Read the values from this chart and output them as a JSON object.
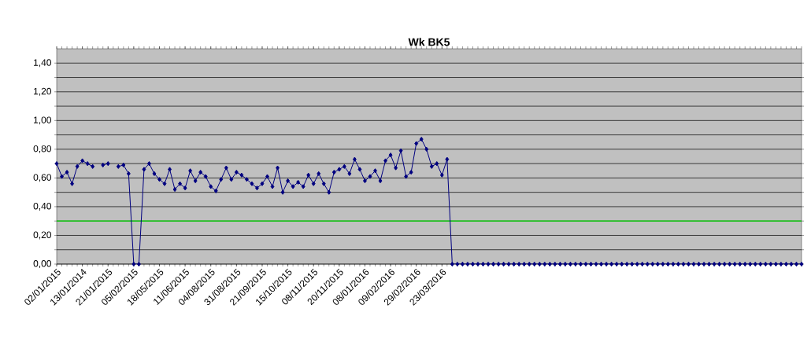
{
  "chart_data": {
    "type": "line",
    "title": "Wk BK5",
    "categories": [
      "02/01/2015",
      null,
      null,
      null,
      null,
      "13/01/2014",
      null,
      null,
      null,
      null,
      "21/01/2015",
      null,
      null,
      null,
      null,
      "05/02/2015",
      null,
      null,
      null,
      null,
      "18/05/2015",
      null,
      null,
      null,
      null,
      "11/06/2015",
      null,
      null,
      null,
      null,
      "04/08/2015",
      null,
      null,
      null,
      null,
      "31/08/2015",
      null,
      null,
      null,
      null,
      "21/09/2015",
      null,
      null,
      null,
      null,
      "15/10/2015",
      null,
      null,
      null,
      null,
      "08/11/2015",
      null,
      null,
      null,
      null,
      "20/11/2015",
      null,
      null,
      null,
      null,
      "08/01/2016",
      null,
      null,
      null,
      null,
      "09/02/2016",
      null,
      null,
      null,
      null,
      "29/02/2016",
      null,
      null,
      null,
      null,
      "23/03/2016",
      null,
      null,
      null,
      null,
      null,
      null,
      null,
      null,
      null,
      null,
      null,
      null,
      null,
      null,
      null,
      null,
      null,
      null,
      null,
      null,
      null,
      null,
      null,
      null,
      null,
      null,
      null,
      null,
      null,
      null,
      null,
      null,
      null,
      null,
      null,
      null,
      null,
      null,
      null,
      null,
      null,
      null,
      null,
      null,
      null,
      null,
      null,
      null,
      null,
      null,
      null,
      null,
      null,
      null,
      null,
      null,
      null,
      null,
      null,
      null,
      null,
      null,
      null,
      null,
      null,
      null,
      null,
      null,
      null,
      null
    ],
    "series": [
      {
        "color": "#000080",
        "values": [
          0.7,
          0.61,
          0.64,
          0.56,
          0.68,
          0.72,
          0.7,
          0.68,
          null,
          0.69,
          0.7,
          null,
          0.68,
          0.69,
          0.63,
          0,
          0,
          0.66,
          0.7,
          0.63,
          0.59,
          0.56,
          0.66,
          0.52,
          0.56,
          0.53,
          0.65,
          0.58,
          0.64,
          0.61,
          0.54,
          0.51,
          0.59,
          0.67,
          0.59,
          0.64,
          0.62,
          0.59,
          0.56,
          0.53,
          0.56,
          0.61,
          0.54,
          0.67,
          0.5,
          0.58,
          0.54,
          0.57,
          0.54,
          0.62,
          0.56,
          0.63,
          0.56,
          0.5,
          0.64,
          0.66,
          0.68,
          0.63,
          0.73,
          0.66,
          0.58,
          0.61,
          0.65,
          0.58,
          0.72,
          0.76,
          0.67,
          0.79,
          0.61,
          0.64,
          0.84,
          0.87,
          0.8,
          0.68,
          0.7,
          0.62,
          0.73,
          0,
          0,
          0,
          0,
          0,
          0,
          0,
          0,
          0,
          0,
          0,
          0,
          0,
          0,
          0,
          0,
          0,
          0,
          0,
          0,
          0,
          0,
          0,
          0,
          0,
          0,
          0,
          0,
          0,
          0,
          0,
          0,
          0,
          0,
          0,
          0,
          0,
          0,
          0,
          0,
          0,
          0,
          0,
          0,
          0,
          0,
          0,
          0,
          0,
          0,
          0,
          0,
          0,
          0,
          0,
          0,
          0,
          0,
          0,
          0,
          0,
          0,
          0,
          0,
          0,
          0,
          0,
          0,
          0
        ]
      }
    ],
    "ylim": [
      0,
      1.5
    ],
    "yticks": [
      {
        "value": 0,
        "label": "0,00"
      },
      {
        "value": 0.1,
        "label": null
      },
      {
        "value": 0.2,
        "label": "0,20"
      },
      {
        "value": 0.3,
        "label": null
      },
      {
        "value": 0.4,
        "label": "0,40"
      },
      {
        "value": 0.5,
        "label": null
      },
      {
        "value": 0.6,
        "label": "0,60"
      },
      {
        "value": 0.7,
        "label": null
      },
      {
        "value": 0.8,
        "label": "0,80"
      },
      {
        "value": 0.9,
        "label": null
      },
      {
        "value": 1.0,
        "label": "1,00"
      },
      {
        "value": 1.1,
        "label": null
      },
      {
        "value": 1.2,
        "label": "1,20"
      },
      {
        "value": 1.3,
        "label": null
      },
      {
        "value": 1.4,
        "label": "1,40"
      }
    ],
    "ref_lines": [
      {
        "axis": "y",
        "value": 0.3,
        "color": "#00e000"
      }
    ],
    "grid": "y",
    "marker": "diamond",
    "line_style": "solid"
  }
}
